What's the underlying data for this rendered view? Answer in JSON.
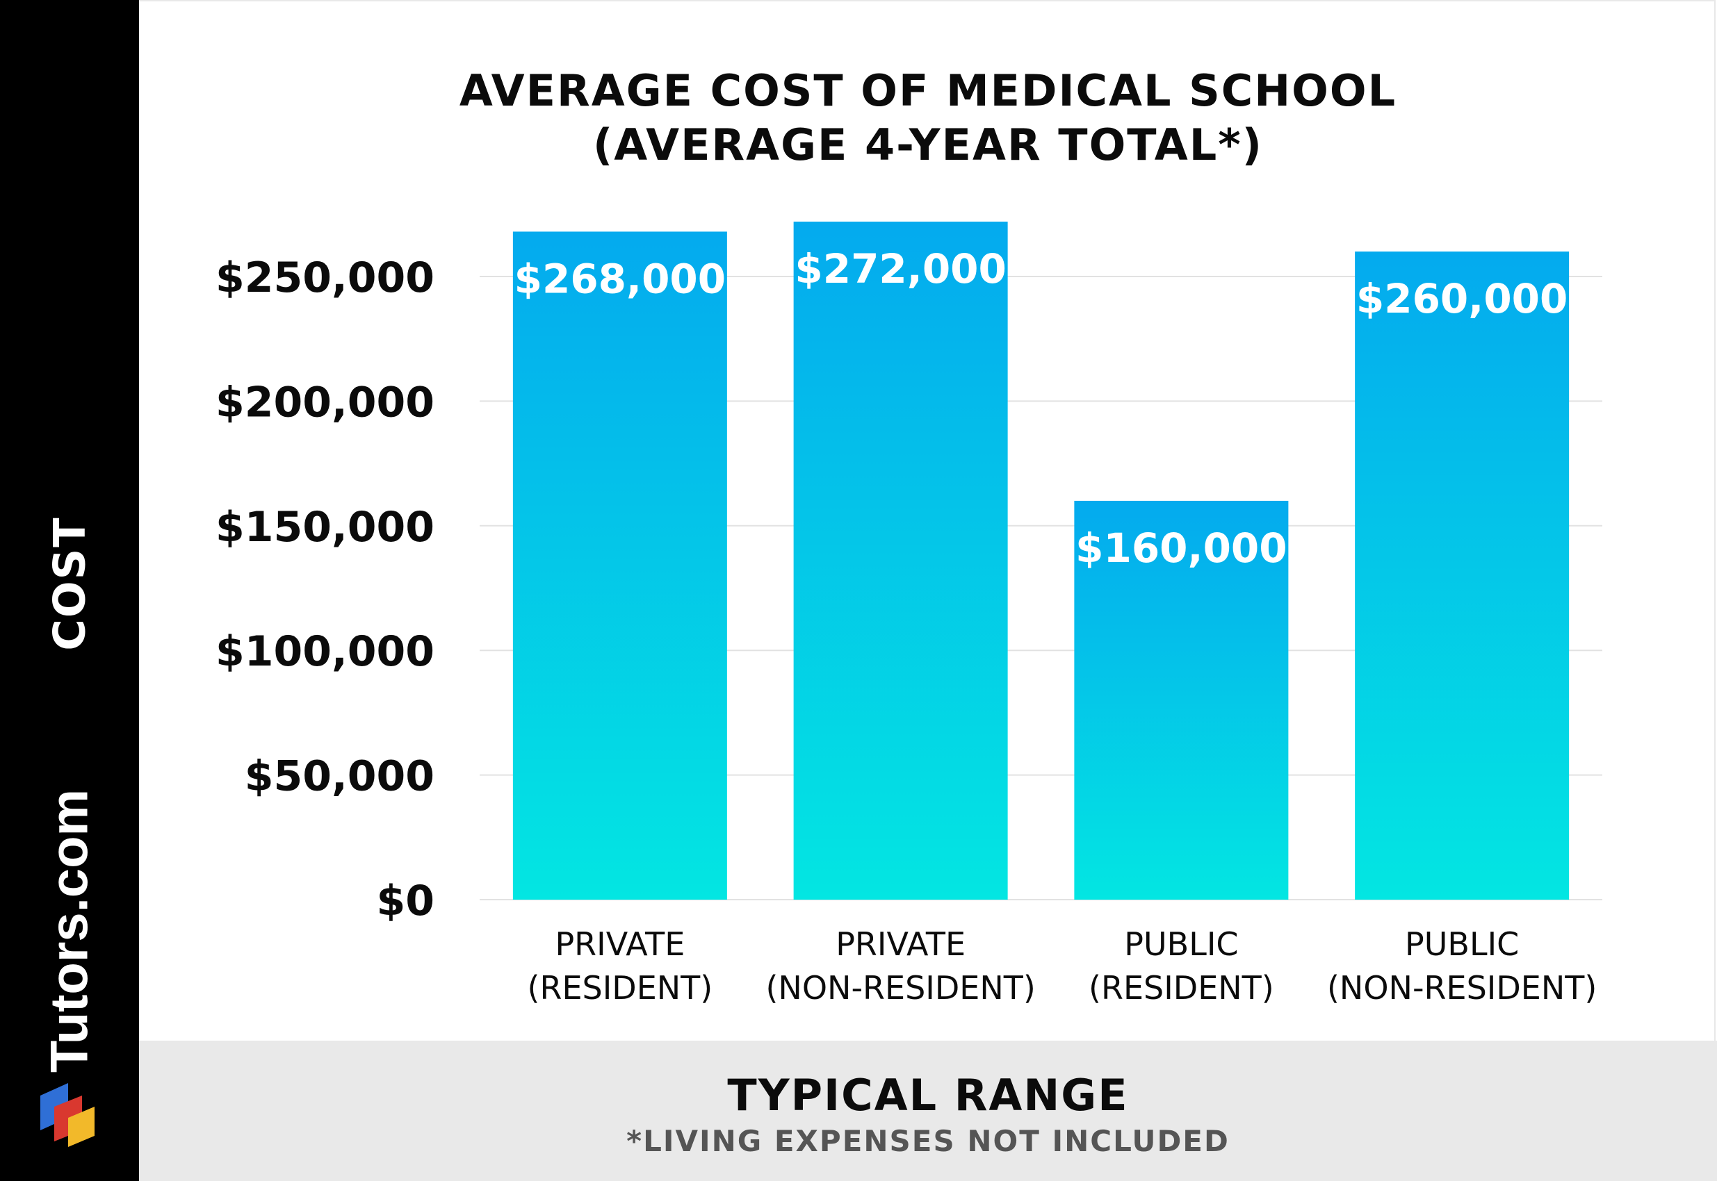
{
  "brand": {
    "name": "Tutors.com",
    "logo_icon": "tutors-cube-logo-icon",
    "logo_colors": [
      "#2f6fd6",
      "#d9382f",
      "#f2b92a"
    ]
  },
  "header": {
    "title_line1": "AVERAGE COST OF MEDICAL SCHOOL",
    "title_line2": "(AVERAGE 4-YEAR TOTAL*)"
  },
  "footer": {
    "title": "TYPICAL RANGE",
    "note": "*LIVING EXPENSES NOT INCLUDED"
  },
  "colors": {
    "bar_top": "#04aaee",
    "bar_bottom": "#03e6e2",
    "gridline": "#e2e2e2",
    "sidebar": "#000000",
    "footer_bg": "#e9e9e9"
  },
  "chart_data": {
    "type": "bar",
    "title": "AVERAGE COST OF MEDICAL SCHOOL (AVERAGE 4-YEAR TOTAL*)",
    "xlabel": "TYPICAL RANGE",
    "ylabel": "COST",
    "categories": [
      [
        "PRIVATE",
        "(RESIDENT)"
      ],
      [
        "PRIVATE",
        "(NON-RESIDENT)"
      ],
      [
        "PUBLIC",
        "(RESIDENT)"
      ],
      [
        "PUBLIC",
        "(NON-RESIDENT)"
      ]
    ],
    "values": [
      268000,
      272000,
      160000,
      260000
    ],
    "value_labels": [
      "$268,000",
      "$272,000",
      "$160,000",
      "$260,000"
    ],
    "ylim": [
      0,
      250000
    ],
    "yticks": [
      0,
      50000,
      100000,
      150000,
      200000,
      250000
    ],
    "ytick_labels": [
      "$0",
      "$50,000",
      "$100,000",
      "$150,000",
      "$200,000",
      "$250,000"
    ],
    "grid": true,
    "legend": "none"
  }
}
